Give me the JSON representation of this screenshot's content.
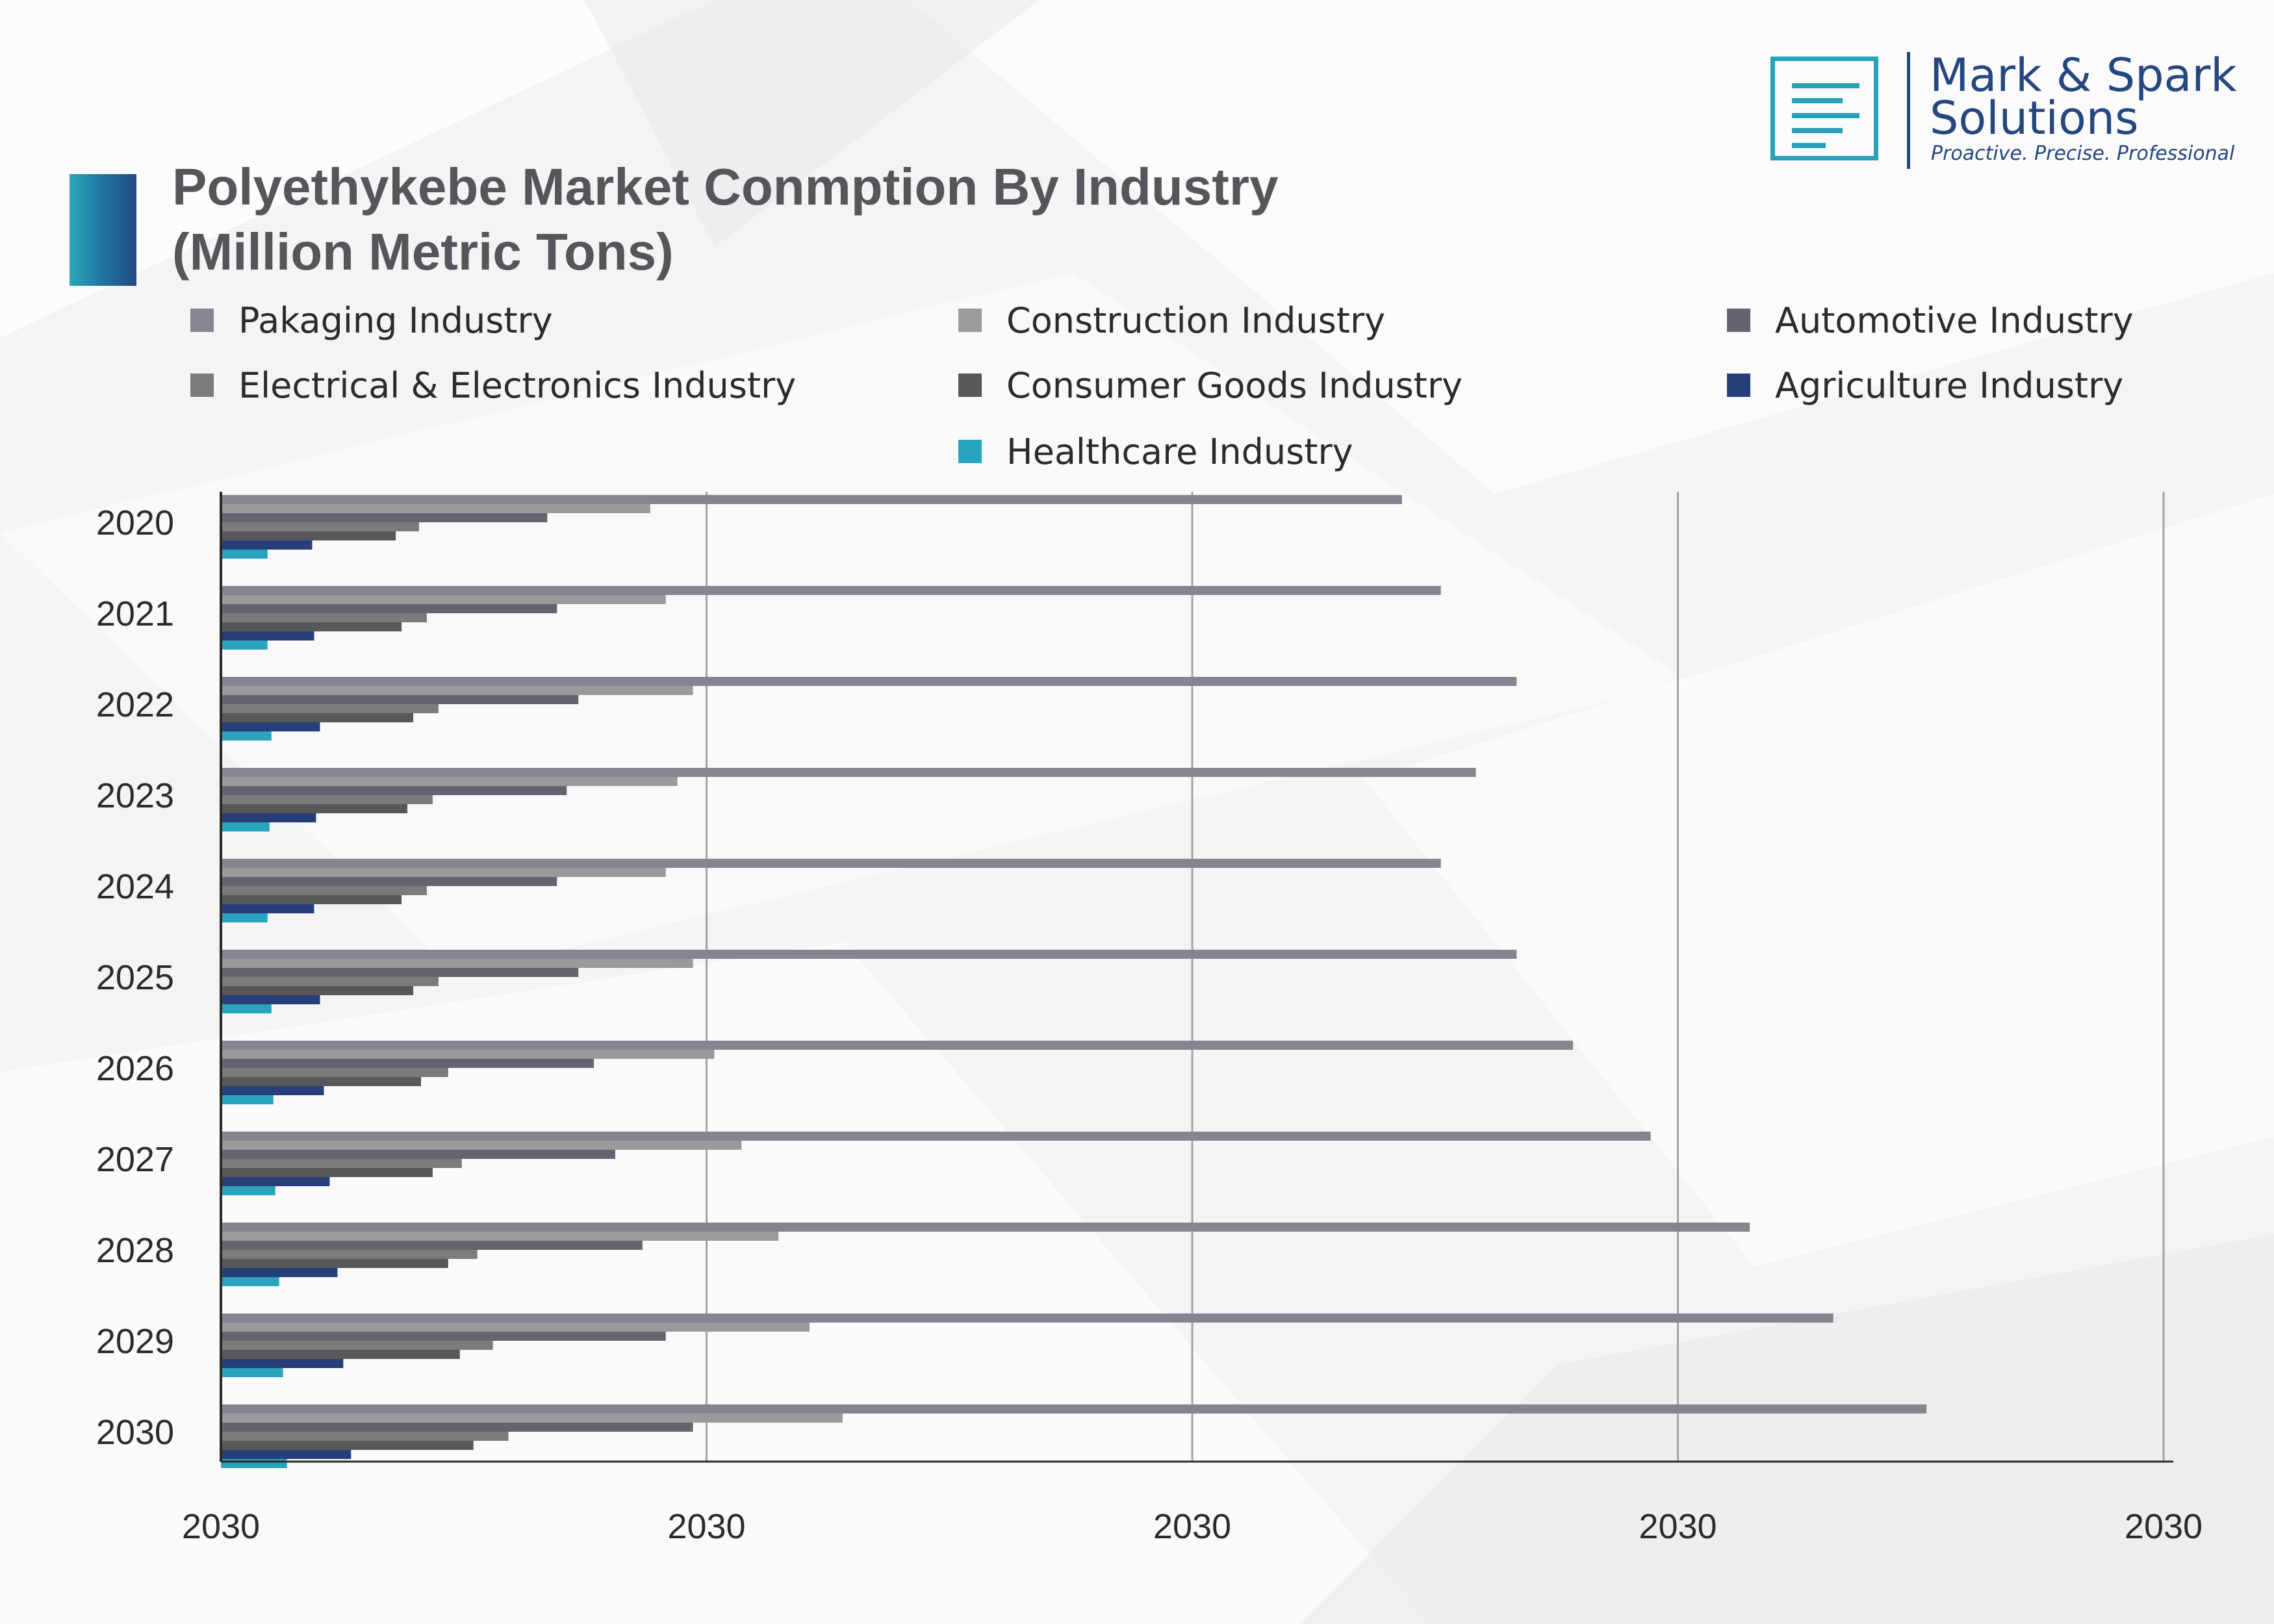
{
  "header": {
    "title_line1": "Polyethykebe Market Conmption By Industry",
    "title_line2": "(Million Metric Tons)"
  },
  "logo": {
    "name_line1": "Mark & Spark",
    "name_line2": "Solutions",
    "tagline": "Proactive. Precise. Professional",
    "icon": "document-lines-icon"
  },
  "colors": {
    "accent": "#2aa0ba",
    "brand": "#24477f",
    "title": "#54565b"
  },
  "chart_data": {
    "type": "bar",
    "orientation": "horizontal",
    "title": "Polyethykebe Market Conmption By Industry (Million Metric Tons)",
    "xlabel": "",
    "ylabel": "",
    "categories": [
      "2020",
      "2021",
      "2022",
      "2023",
      "2024",
      "2025",
      "2026",
      "2027",
      "2028",
      "2029",
      "2030"
    ],
    "x_tick_labels": [
      "2030",
      "2030",
      "2030",
      "2030",
      "2030"
    ],
    "xlim": [
      0,
      100
    ],
    "grid": true,
    "legend_position": "top",
    "series": [
      {
        "name": "Pakaging Industry",
        "color": "#86858f",
        "values": [
          60.8,
          62.8,
          66.7,
          64.6,
          62.8,
          66.7,
          69.6,
          73.6,
          78.7,
          83.0,
          87.8
        ]
      },
      {
        "name": "Construction Industry",
        "color": "#9a9a9c",
        "values": [
          22.1,
          22.9,
          24.3,
          23.5,
          22.9,
          24.3,
          25.4,
          26.8,
          28.7,
          30.3,
          32.0
        ]
      },
      {
        "name": "Automotive Industry",
        "color": "#65646e",
        "values": [
          16.8,
          17.3,
          18.4,
          17.8,
          17.3,
          18.4,
          19.2,
          20.3,
          21.7,
          22.9,
          24.3
        ]
      },
      {
        "name": "Electrical & Electronics Industry",
        "color": "#7b7b7d",
        "values": [
          10.2,
          10.6,
          11.2,
          10.9,
          10.6,
          11.2,
          11.7,
          12.4,
          13.2,
          14.0,
          14.8
        ]
      },
      {
        "name": "Consumer Goods Industry",
        "color": "#58585a",
        "values": [
          9.0,
          9.3,
          9.9,
          9.6,
          9.3,
          9.9,
          10.3,
          10.9,
          11.7,
          12.3,
          13.0
        ]
      },
      {
        "name": "Agriculture Industry",
        "color": "#263f7a",
        "values": [
          4.7,
          4.8,
          5.1,
          4.9,
          4.8,
          5.1,
          5.3,
          5.6,
          6.0,
          6.3,
          6.7
        ]
      },
      {
        "name": "Healthcare Industry",
        "color": "#2aa3bd",
        "values": [
          2.4,
          2.4,
          2.6,
          2.5,
          2.4,
          2.6,
          2.7,
          2.8,
          3.0,
          3.2,
          3.4
        ]
      }
    ]
  }
}
